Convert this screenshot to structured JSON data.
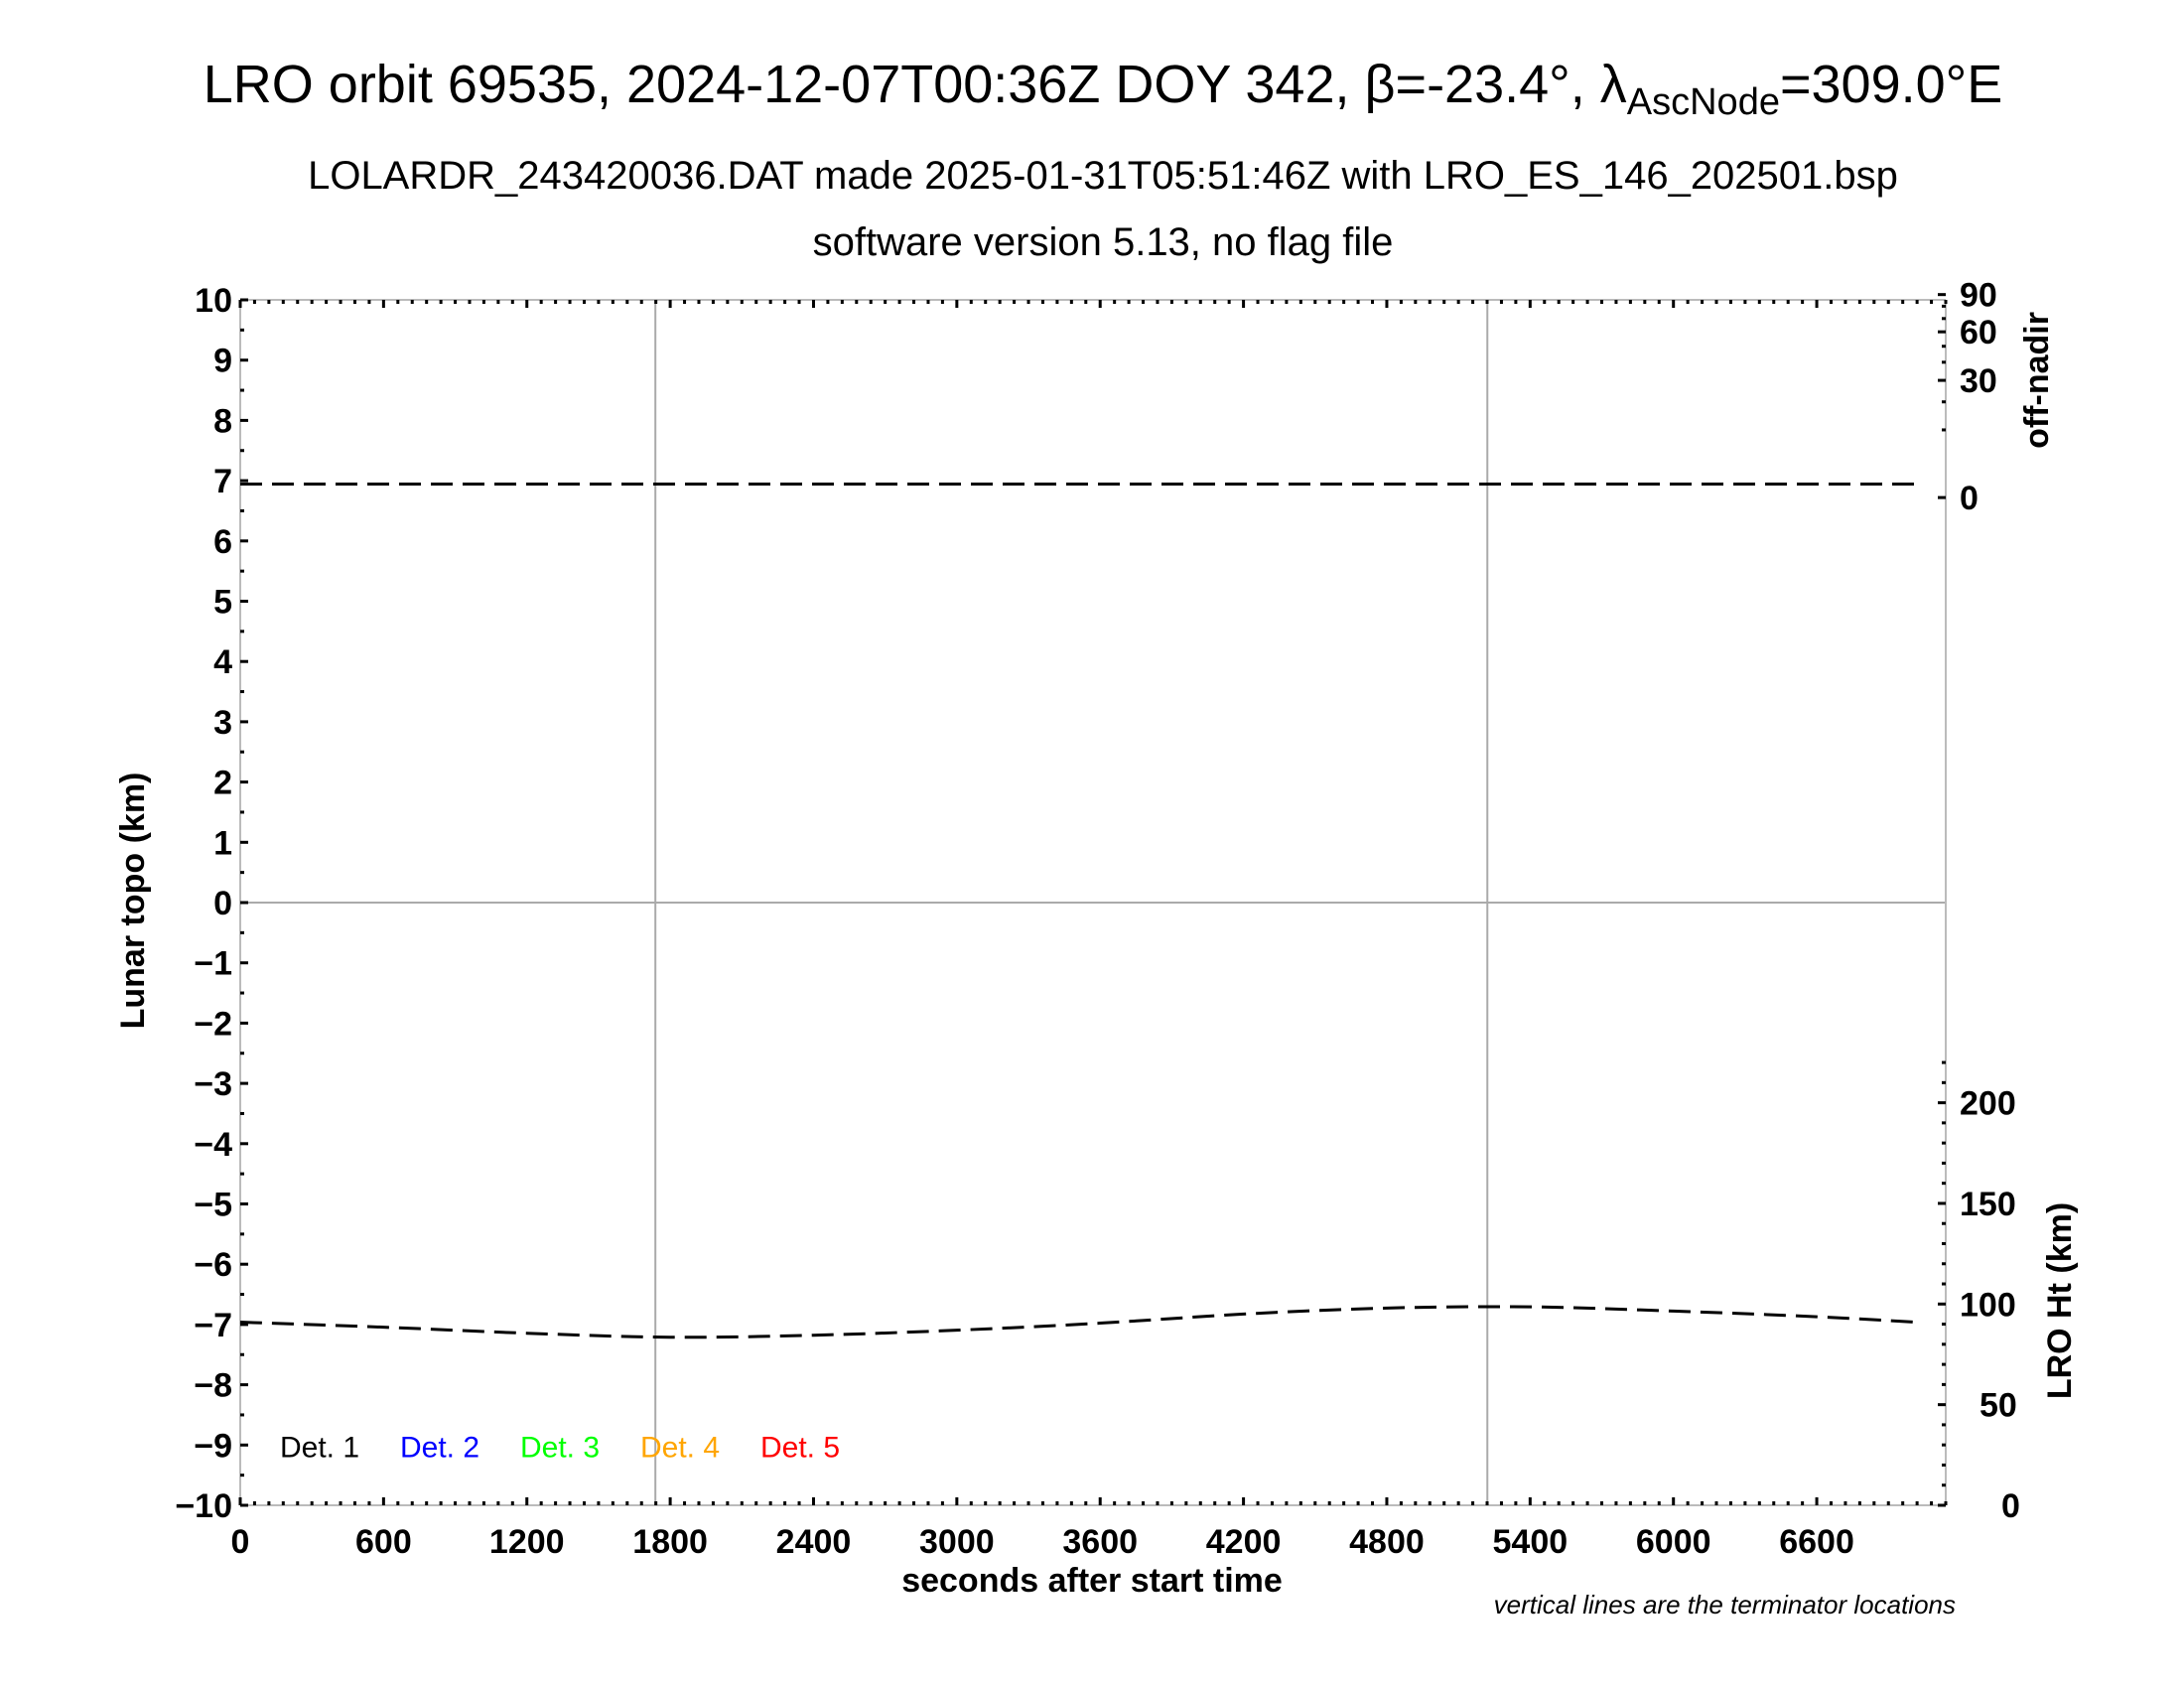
{
  "chart_data": {
    "type": "line",
    "title": {
      "main": "LRO orbit 69535, 2024-12-07T00:36Z DOY 342, β=-23.4°, λ",
      "sub": "AscNode",
      "tail": "=309.0°E"
    },
    "subtitle_1": "LOLARDR_243420036.DAT made 2025-01-31T05:51:46Z with LRO_ES_146_202501.bsp",
    "subtitle_2": "software version 5.13, no flag file",
    "xlabel": "seconds after start time",
    "ylabel": "Lunar topo (km)",
    "y2_top_label": "off-nadir",
    "y2_bottom_label": "LRO Ht (km)",
    "xlim": [
      0,
      7140
    ],
    "ylim": [
      -10,
      10
    ],
    "x_ticks": [
      "0",
      "600",
      "1200",
      "1800",
      "2400",
      "3000",
      "3600",
      "4200",
      "4800",
      "5400",
      "6000",
      "6600"
    ],
    "x_tick_values": [
      0,
      600,
      1200,
      1800,
      2400,
      3000,
      3600,
      4200,
      4800,
      5400,
      6000,
      6600
    ],
    "y_ticks": [
      "10",
      "9",
      "8",
      "7",
      "6",
      "5",
      "4",
      "3",
      "2",
      "1",
      "0",
      "−1",
      "−2",
      "−3",
      "−4",
      "−5",
      "−6",
      "−7",
      "−8",
      "−9",
      "−10"
    ],
    "y_tick_values": [
      10,
      9,
      8,
      7,
      6,
      5,
      4,
      3,
      2,
      1,
      0,
      -1,
      -2,
      -3,
      -4,
      -5,
      -6,
      -7,
      -8,
      -9,
      -10
    ],
    "off_nadir_axis": {
      "scale": "sqrt",
      "ticks": [
        "90",
        "60",
        "30",
        "0"
      ],
      "tick_values": [
        90,
        60,
        30,
        0
      ]
    },
    "height_axis": {
      "ticks": [
        "200",
        "150",
        "100",
        "50",
        "0"
      ],
      "tick_values": [
        200,
        150,
        100,
        50,
        0
      ]
    },
    "terminators_s": [
      1738,
      5221
    ],
    "grid": "terminator lines and zero line only",
    "legend": {
      "placement": "bottom-left",
      "items": [
        {
          "label": "Det. 1",
          "color": "#000000"
        },
        {
          "label": "Det. 2",
          "color": "#0000ff"
        },
        {
          "label": "Det. 3",
          "color": "#00ff00"
        },
        {
          "label": "Det. 4",
          "color": "#ffa500"
        },
        {
          "label": "Det. 5",
          "color": "#ff0000"
        }
      ]
    },
    "series": [
      {
        "axis": "off-nadir (deg)",
        "style": "dashed black",
        "x": [
          0,
          1000,
          2000,
          3000,
          4000,
          5000,
          6000,
          7012
        ],
        "y": [
          0.4,
          0.4,
          0.4,
          0.4,
          0.4,
          0.4,
          0.4,
          0.4
        ]
      },
      {
        "axis": "LRO Ht (km)",
        "style": "dashed black",
        "x": [
          0,
          600,
          1200,
          1800,
          2400,
          3000,
          3600,
          4200,
          4800,
          5400,
          6000,
          6600,
          7012
        ],
        "y": [
          91,
          88.5,
          85.5,
          83.5,
          84.5,
          87,
          90.5,
          95,
          98,
          98.6,
          96.5,
          93.7,
          91
        ]
      }
    ],
    "footnote": "vertical lines are the terminator locations"
  }
}
